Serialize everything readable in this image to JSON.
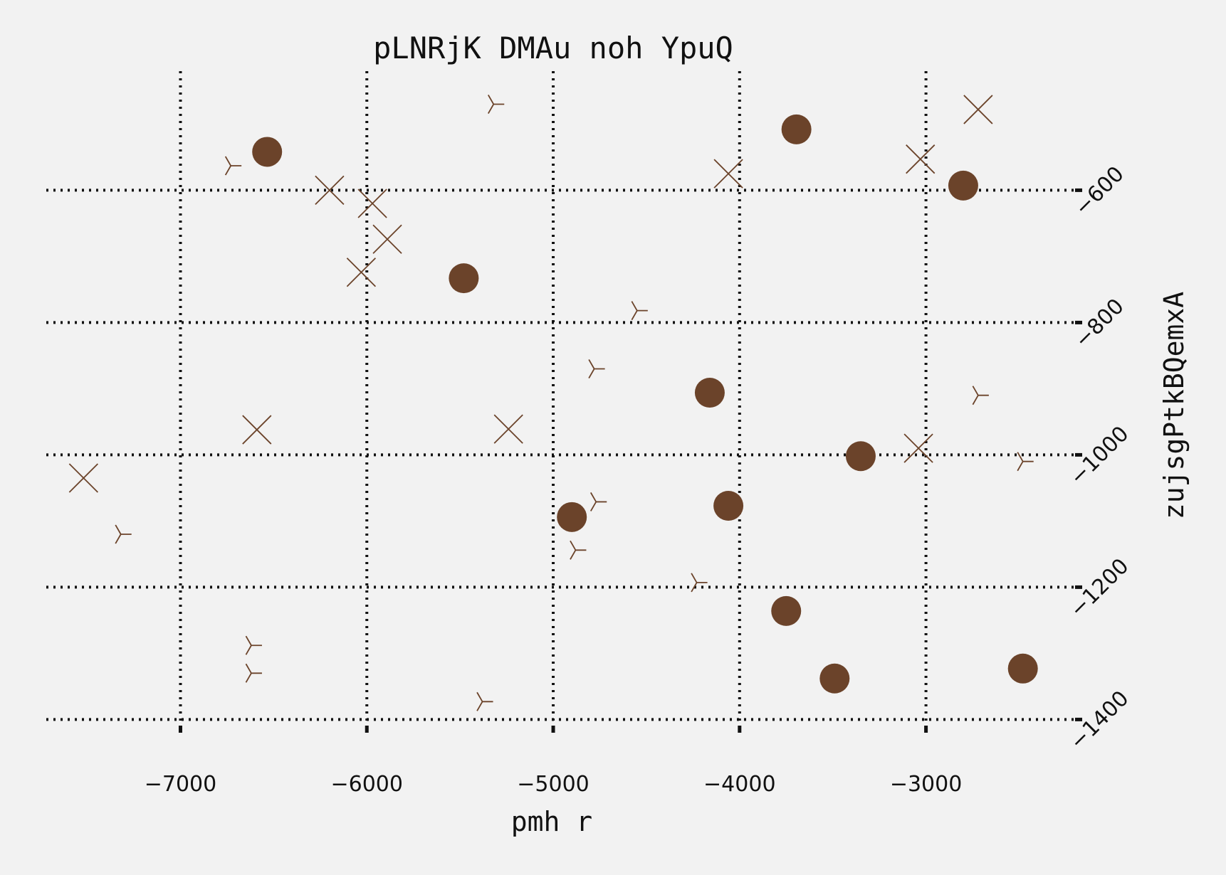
{
  "chart_data": {
    "type": "scatter",
    "title": "pLNRjK DMAu noh YpuQ",
    "xlabel": "pmh r",
    "ylabel": "zujsgPtkBQemxA",
    "xlim": [
      -7720,
      -2200
    ],
    "ylim": [
      -1420,
      -420
    ],
    "x_ticks": [
      -7000,
      -6000,
      -5000,
      -4000,
      -3000
    ],
    "y_ticks": [
      -600,
      -800,
      -1000,
      -1200,
      -1400
    ],
    "x_tick_labels": [
      "−7000",
      "−6000",
      "−5000",
      "−4000",
      "−3000"
    ],
    "y_tick_labels": [
      "−600",
      "−800",
      "−1000",
      "−1200",
      "−1400"
    ],
    "y_axis_side": "right",
    "grid": true,
    "legend": "none",
    "color": "#6b432a",
    "series": [
      {
        "marker": "circle",
        "points": [
          [
            -6535,
            -542
          ],
          [
            -5480,
            -733
          ],
          [
            -3695,
            -508
          ],
          [
            -2800,
            -593
          ],
          [
            -4160,
            -906
          ],
          [
            -3350,
            -1002
          ],
          [
            -4900,
            -1094
          ],
          [
            -4060,
            -1077
          ],
          [
            -3750,
            -1236
          ],
          [
            -3490,
            -1338
          ],
          [
            -2480,
            -1323
          ]
        ]
      },
      {
        "marker": "x",
        "points": [
          [
            -7520,
            -1035
          ],
          [
            -6590,
            -962
          ],
          [
            -6200,
            -600
          ],
          [
            -5970,
            -620
          ],
          [
            -5890,
            -674
          ],
          [
            -6030,
            -724
          ],
          [
            -5240,
            -961
          ],
          [
            -4060,
            -575
          ],
          [
            -3030,
            -553
          ],
          [
            -2720,
            -478
          ],
          [
            -3040,
            -990
          ]
        ]
      },
      {
        "marker": "tri_left",
        "points": [
          [
            -5320,
            -470
          ],
          [
            -6730,
            -563
          ],
          [
            -4550,
            -782
          ],
          [
            -4780,
            -870
          ],
          [
            -2720,
            -910
          ],
          [
            -7320,
            -1120
          ],
          [
            -4770,
            -1071
          ],
          [
            -4880,
            -1144
          ],
          [
            -4230,
            -1193
          ],
          [
            -2480,
            -1010
          ],
          [
            -6620,
            -1288
          ],
          [
            -6620,
            -1330
          ],
          [
            -5380,
            -1373
          ]
        ]
      }
    ]
  }
}
